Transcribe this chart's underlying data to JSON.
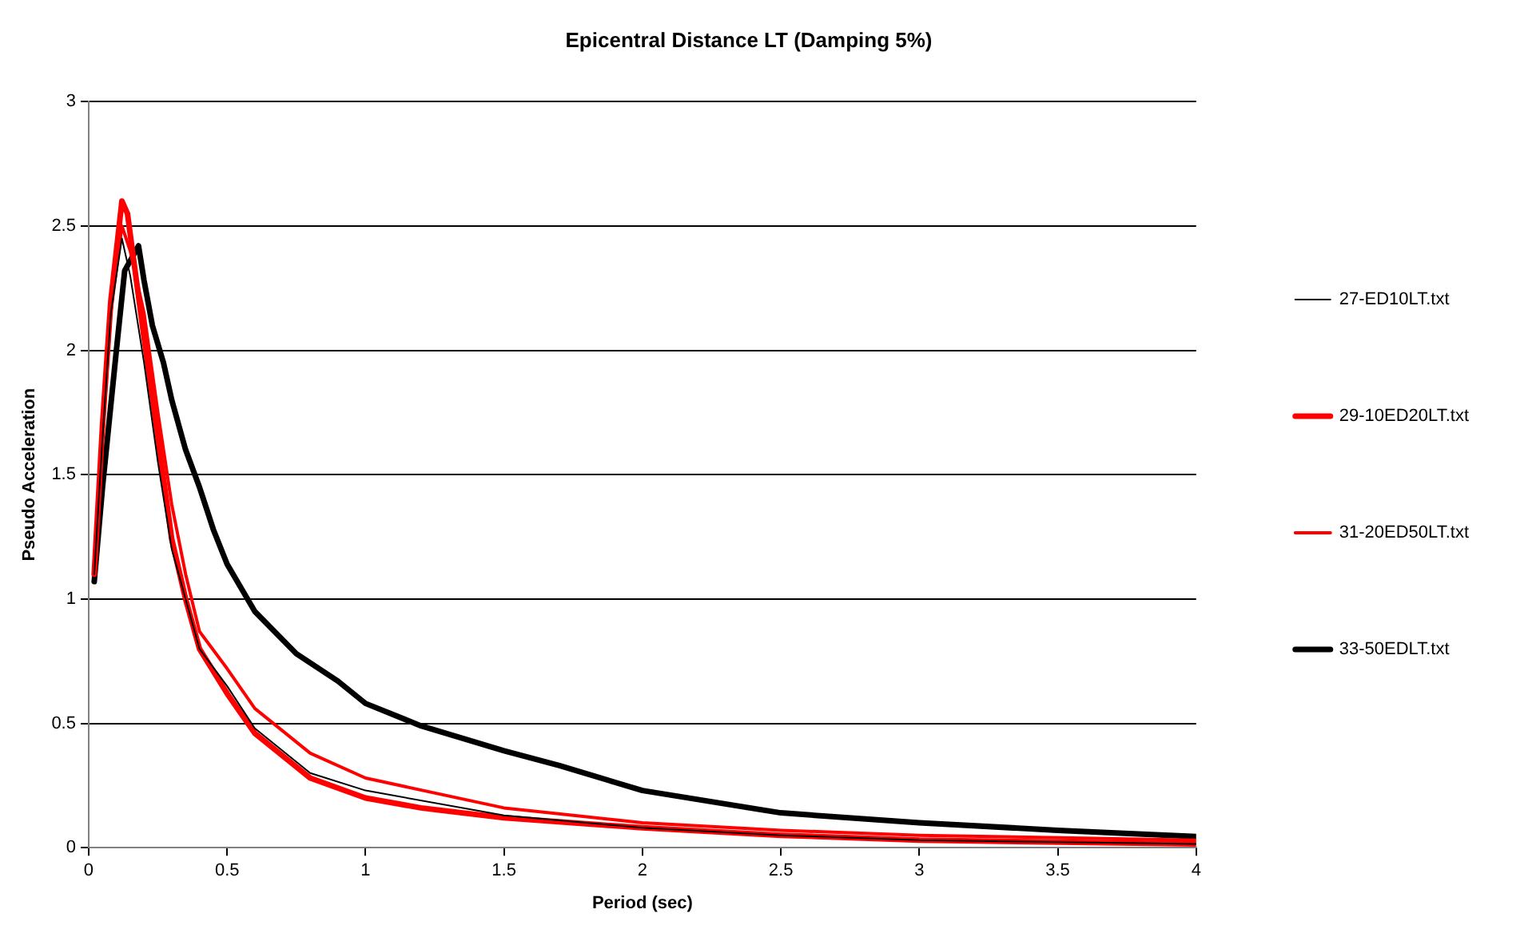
{
  "chart_data": {
    "type": "line",
    "title": "Epicentral Distance LT (Damping 5%)",
    "xlabel": "Period (sec)",
    "ylabel": "Pseudo Acceleration",
    "xlim": [
      0,
      4
    ],
    "xticks": [
      0,
      0.5,
      1,
      1.5,
      2,
      2.5,
      3,
      3.5,
      4
    ],
    "ylim": [
      0,
      3
    ],
    "yticks": [
      0,
      0.5,
      1,
      1.5,
      2,
      2.5,
      3
    ],
    "grid": "y",
    "legend": "right",
    "marker": "none",
    "line_style": "solid",
    "series": [
      {
        "name": "27-ED10LT.txt",
        "color": "#000000",
        "x": [
          0.02,
          0.05,
          0.08,
          0.12,
          0.15,
          0.2,
          0.25,
          0.3,
          0.4,
          0.5,
          0.6,
          0.8,
          1,
          1.5,
          2,
          2.5,
          3,
          4
        ],
        "values": [
          1.1,
          1.65,
          2.15,
          2.45,
          2.3,
          1.95,
          1.55,
          1.2,
          0.8,
          0.65,
          0.48,
          0.3,
          0.23,
          0.13,
          0.08,
          0.05,
          0.03,
          0.015
        ]
      },
      {
        "name": "29-10ED20LT.txt",
        "color": "#ff0000",
        "x": [
          0.02,
          0.05,
          0.08,
          0.12,
          0.14,
          0.17,
          0.2,
          0.25,
          0.3,
          0.35,
          0.4,
          0.5,
          0.6,
          0.8,
          1,
          1.2,
          1.5,
          2,
          2.5,
          3,
          4
        ],
        "values": [
          1.1,
          1.7,
          2.2,
          2.6,
          2.55,
          2.3,
          2.05,
          1.65,
          1.24,
          1.0,
          0.8,
          0.62,
          0.46,
          0.28,
          0.2,
          0.16,
          0.12,
          0.08,
          0.05,
          0.03,
          0.015
        ]
      },
      {
        "name": "31-20ED50LT.txt",
        "color": "#ff0000",
        "x": [
          0.02,
          0.05,
          0.08,
          0.12,
          0.15,
          0.2,
          0.25,
          0.3,
          0.35,
          0.4,
          0.5,
          0.6,
          0.8,
          1,
          1.5,
          2,
          2.5,
          3,
          4
        ],
        "values": [
          1.1,
          1.65,
          2.15,
          2.5,
          2.4,
          2.15,
          1.75,
          1.38,
          1.1,
          0.87,
          0.72,
          0.56,
          0.38,
          0.28,
          0.16,
          0.1,
          0.07,
          0.05,
          0.03
        ]
      },
      {
        "name": "33-50EDLT.txt",
        "color": "#000000",
        "x": [
          0.02,
          0.05,
          0.1,
          0.13,
          0.16,
          0.18,
          0.2,
          0.23,
          0.27,
          0.3,
          0.35,
          0.4,
          0.45,
          0.5,
          0.6,
          0.75,
          0.9,
          1,
          1.2,
          1.5,
          1.7,
          2,
          2.5,
          3,
          3.5,
          4
        ],
        "values": [
          1.07,
          1.45,
          2.0,
          2.32,
          2.38,
          2.42,
          2.28,
          2.1,
          1.95,
          1.8,
          1.6,
          1.45,
          1.28,
          1.14,
          0.95,
          0.78,
          0.67,
          0.58,
          0.49,
          0.39,
          0.33,
          0.23,
          0.14,
          0.1,
          0.07,
          0.045
        ]
      }
    ]
  }
}
